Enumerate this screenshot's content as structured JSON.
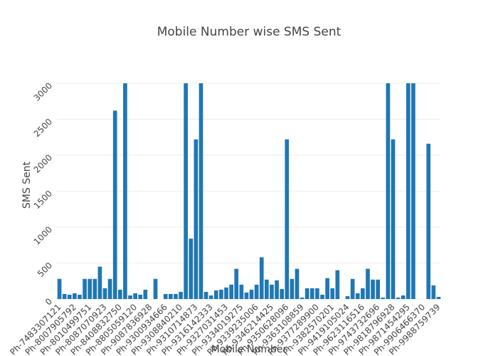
{
  "chart_data": {
    "type": "bar",
    "title": "Mobile Number wise SMS Sent",
    "x_label": "Mobile Number",
    "y_label": "SMS Sent",
    "color": "#1f77b4",
    "grid": true,
    "ylim": [
      0,
      3000
    ],
    "yticks": [
      0,
      500,
      1000,
      1500,
      2000,
      2500,
      3000
    ],
    "categories": [
      "Ph-7483307121",
      null,
      null,
      "Ph-8007905792",
      null,
      null,
      "Ph-8010499751",
      null,
      null,
      "Ph-8087070923",
      null,
      null,
      "Ph-8408832750",
      null,
      null,
      "Ph-8805059120",
      null,
      null,
      "Ph-9087836928",
      null,
      null,
      "Ph-9300934666",
      null,
      null,
      "Ph-9308840210",
      null,
      null,
      "Ph-9310714873",
      null,
      null,
      "Ph-9316142333",
      null,
      null,
      "Ph-9327031453",
      null,
      null,
      "Ph-9334019275",
      null,
      null,
      "Ph-9339235006",
      null,
      null,
      "Ph-9346214425",
      null,
      null,
      "Ph-9350628096",
      null,
      null,
      "Ph-9363108859",
      null,
      null,
      "Ph-9377289900",
      null,
      null,
      "Ph-9382570201",
      null,
      null,
      "Ph-9419105024",
      null,
      null,
      "Ph-9623116516",
      null,
      null,
      "Ph-9743732696",
      null,
      null,
      "Ph-9818796928",
      null,
      null,
      "Ph-9871454295",
      null,
      null,
      "Ph-9906466370",
      null,
      null,
      "Ph-9988759739"
    ],
    "values": [
      280,
      70,
      60,
      80,
      60,
      280,
      280,
      280,
      450,
      150,
      280,
      2620,
      130,
      3000,
      50,
      80,
      60,
      130,
      0,
      280,
      0,
      70,
      70,
      70,
      100,
      3000,
      840,
      2220,
      3000,
      100,
      50,
      120,
      130,
      160,
      200,
      420,
      200,
      90,
      130,
      200,
      580,
      270,
      200,
      260,
      140,
      2220,
      280,
      420,
      20,
      150,
      150,
      150,
      60,
      290,
      150,
      400,
      0,
      40,
      280,
      80,
      150,
      420,
      270,
      270,
      20,
      3000,
      2220,
      20,
      50,
      3000,
      3000,
      0,
      0,
      2160,
      190,
      30
    ]
  }
}
